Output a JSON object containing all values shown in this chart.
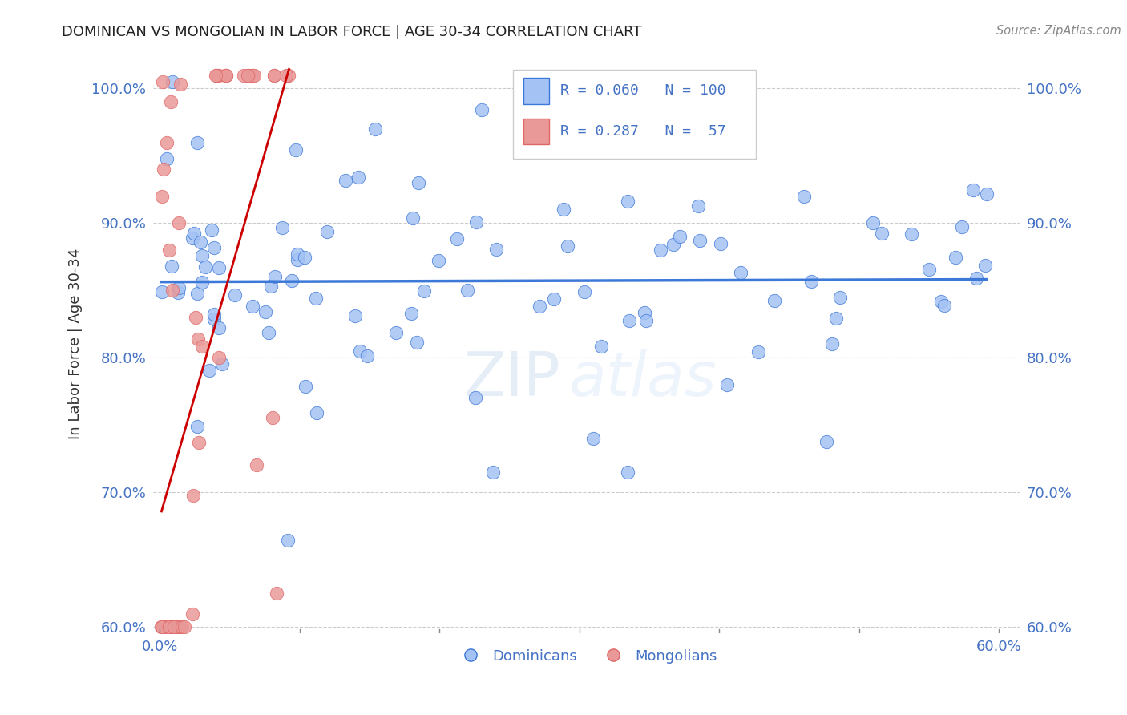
{
  "title": "DOMINICAN VS MONGOLIAN IN LABOR FORCE | AGE 30-34 CORRELATION CHART",
  "source": "Source: ZipAtlas.com",
  "ylabel": "In Labor Force | Age 30-34",
  "xlabel_blue": "Dominicans",
  "xlabel_pink": "Mongolians",
  "R_blue": 0.06,
  "N_blue": 100,
  "R_pink": 0.287,
  "N_pink": 57,
  "xlim": [
    -0.005,
    0.615
  ],
  "ylim": [
    0.595,
    1.025
  ],
  "yticks": [
    0.6,
    0.7,
    0.8,
    0.9,
    1.0
  ],
  "xticks": [
    0.0,
    0.1,
    0.2,
    0.3,
    0.4,
    0.5,
    0.6
  ],
  "xtick_labels": [
    "0.0%",
    "",
    "",
    "",
    "",
    "",
    "60.0%"
  ],
  "ytick_labels": [
    "60.0%",
    "70.0%",
    "80.0%",
    "90.0%",
    "100.0%"
  ],
  "color_blue": "#a4c2f4",
  "color_pink": "#ea9999",
  "color_blue_dark": "#3c78d8",
  "color_pink_dark": "#cc0000",
  "color_blue_line": "#3c78d8",
  "color_pink_line": "#cc0000",
  "color_axis": "#4472c4",
  "watermark_text": "ZIP",
  "watermark_text2": "atlas"
}
